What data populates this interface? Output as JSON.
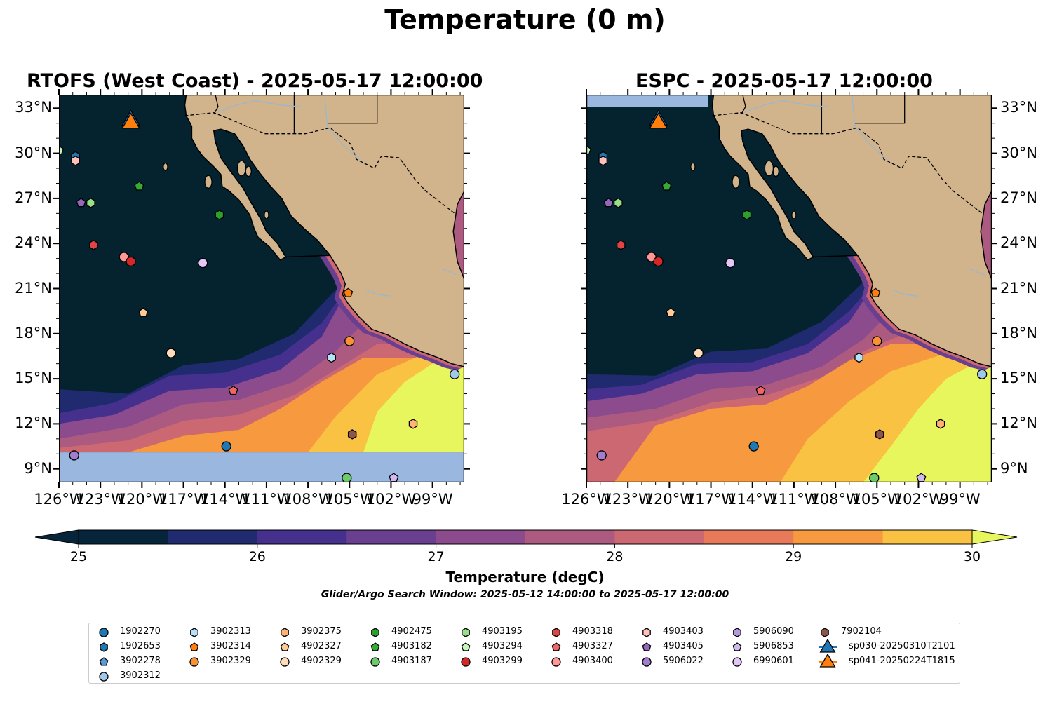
{
  "figure": {
    "title": "Temperature (0 m)",
    "subtitle": "Glider/Argo Search Window: 2025-05-12 14:00:00 to 2025-05-17 12:00:00"
  },
  "panels": [
    {
      "title": "RTOFS (West Coast) - 2025-05-17 12:00:00"
    },
    {
      "title": "ESPC - 2025-05-17 12:00:00"
    }
  ],
  "axes": {
    "lon_ticks": [
      "126°W",
      "123°W",
      "120°W",
      "117°W",
      "114°W",
      "111°W",
      "108°W",
      "105°W",
      "102°W",
      "99°W"
    ],
    "lat_ticks": [
      "33°N",
      "30°N",
      "27°N",
      "24°N",
      "21°N",
      "18°N",
      "15°N",
      "12°N",
      "9°N"
    ],
    "lon_range": [
      -126,
      -96.7
    ],
    "lat_range": [
      8.1,
      33.9
    ]
  },
  "colorbar": {
    "label": "Temperature (degC)",
    "ticks": [
      "25",
      "26",
      "27",
      "28",
      "29",
      "30"
    ],
    "range": [
      25,
      30
    ],
    "colors": [
      "#07253a",
      "#1f2b6e",
      "#45308e",
      "#6a3f8f",
      "#8b4b8c",
      "#ad5a80",
      "#cb6872",
      "#e87a5a",
      "#f6993f",
      "#f9c242",
      "#e6f65c"
    ]
  },
  "colors": {
    "land": "#d2b48c",
    "ocean_cold": "#05222f",
    "nodata": "#9ab7e0",
    "river": "#9ab7cf"
  },
  "legend": [
    {
      "id": "1902270",
      "marker": "circle",
      "color": "#1f77b4"
    },
    {
      "id": "1902653",
      "marker": "hexagon",
      "color": "#1f77b4"
    },
    {
      "id": "3902278",
      "marker": "pentagon",
      "color": "#5b9ad6"
    },
    {
      "id": "3902312",
      "marker": "circle",
      "color": "#9fc8ea"
    },
    {
      "id": "3902313",
      "marker": "hexagon",
      "color": "#b7e2f5"
    },
    {
      "id": "3902314",
      "marker": "pentagon",
      "color": "#ff7f0e"
    },
    {
      "id": "3902329",
      "marker": "circle",
      "color": "#fa9233"
    },
    {
      "id": "3902375",
      "marker": "hexagon",
      "color": "#ffb273"
    },
    {
      "id": "4902327",
      "marker": "pentagon",
      "color": "#ffca94"
    },
    {
      "id": "4902329",
      "marker": "circle",
      "color": "#ffdcba"
    },
    {
      "id": "4902475",
      "marker": "hexagon",
      "color": "#2ca02c"
    },
    {
      "id": "4903182",
      "marker": "pentagon",
      "color": "#37a937"
    },
    {
      "id": "4903187",
      "marker": "circle",
      "color": "#6ccc6c"
    },
    {
      "id": "4903195",
      "marker": "hexagon",
      "color": "#98df8a"
    },
    {
      "id": "4903294",
      "marker": "pentagon",
      "color": "#c6f7b8"
    },
    {
      "id": "4903299",
      "marker": "circle",
      "color": "#d62728"
    },
    {
      "id": "4903318",
      "marker": "hexagon",
      "color": "#e04545"
    },
    {
      "id": "4903327",
      "marker": "pentagon",
      "color": "#f06565"
    },
    {
      "id": "4903400",
      "marker": "circle",
      "color": "#ff9896"
    },
    {
      "id": "4903403",
      "marker": "hexagon",
      "color": "#ffc0be"
    },
    {
      "id": "4903405",
      "marker": "pentagon",
      "color": "#9467bd"
    },
    {
      "id": "5906022",
      "marker": "circle",
      "color": "#a27ed0"
    },
    {
      "id": "5906090",
      "marker": "hexagon",
      "color": "#b49adb"
    },
    {
      "id": "5906853",
      "marker": "pentagon",
      "color": "#d1b8ef"
    },
    {
      "id": "6990601",
      "marker": "circle",
      "color": "#e4c6f7"
    },
    {
      "id": "7902104",
      "marker": "hexagon",
      "color": "#8c564b"
    },
    {
      "id": "sp030-20250310T2101",
      "marker": "triangle",
      "color": "#1f77b4"
    },
    {
      "id": "sp041-20250224T1815",
      "marker": "triangle",
      "color": "#ff7f0e"
    }
  ],
  "observations": [
    {
      "id": "4903294",
      "lon": -126.0,
      "lat": 30.2
    },
    {
      "id": "1902653",
      "lon": -124.8,
      "lat": 29.8
    },
    {
      "id": "4903403",
      "lon": -124.8,
      "lat": 29.5
    },
    {
      "id": "4903405",
      "lon": -124.4,
      "lat": 26.7
    },
    {
      "id": "4903195",
      "lon": -123.7,
      "lat": 26.7
    },
    {
      "id": "4903182",
      "lon": -120.2,
      "lat": 27.8
    },
    {
      "id": "4902475",
      "lon": -114.4,
      "lat": 25.9
    },
    {
      "id": "4903318",
      "lon": -123.5,
      "lat": 23.9
    },
    {
      "id": "4903400",
      "lon": -121.3,
      "lat": 23.1
    },
    {
      "id": "4903299",
      "lon": -120.8,
      "lat": 22.8
    },
    {
      "id": "6990601",
      "lon": -115.6,
      "lat": 22.7
    },
    {
      "id": "4902327",
      "lon": -119.9,
      "lat": 19.4
    },
    {
      "id": "3902314",
      "lon": -105.1,
      "lat": 20.7
    },
    {
      "id": "3902329",
      "lon": -105.0,
      "lat": 17.5
    },
    {
      "id": "3902313",
      "lon": -106.3,
      "lat": 16.4
    },
    {
      "id": "4902329",
      "lon": -117.9,
      "lat": 16.7
    },
    {
      "id": "3902312",
      "lon": -97.4,
      "lat": 15.3
    },
    {
      "id": "4903327",
      "lon": -113.4,
      "lat": 14.2
    },
    {
      "id": "3902375",
      "lon": -100.4,
      "lat": 12.0
    },
    {
      "id": "7902104",
      "lon": -104.8,
      "lat": 11.3
    },
    {
      "id": "1902270",
      "lon": -113.9,
      "lat": 10.5
    },
    {
      "id": "5906022",
      "lon": -124.9,
      "lat": 9.9
    },
    {
      "id": "4903187",
      "lon": -105.2,
      "lat": 8.4
    },
    {
      "id": "5906853",
      "lon": -101.8,
      "lat": 8.4
    },
    {
      "id": "sp030-20250310T2101",
      "lon": -120.8,
      "lat": 32.2
    },
    {
      "id": "sp041-20250224T1815",
      "lon": -120.8,
      "lat": 32.0
    }
  ]
}
